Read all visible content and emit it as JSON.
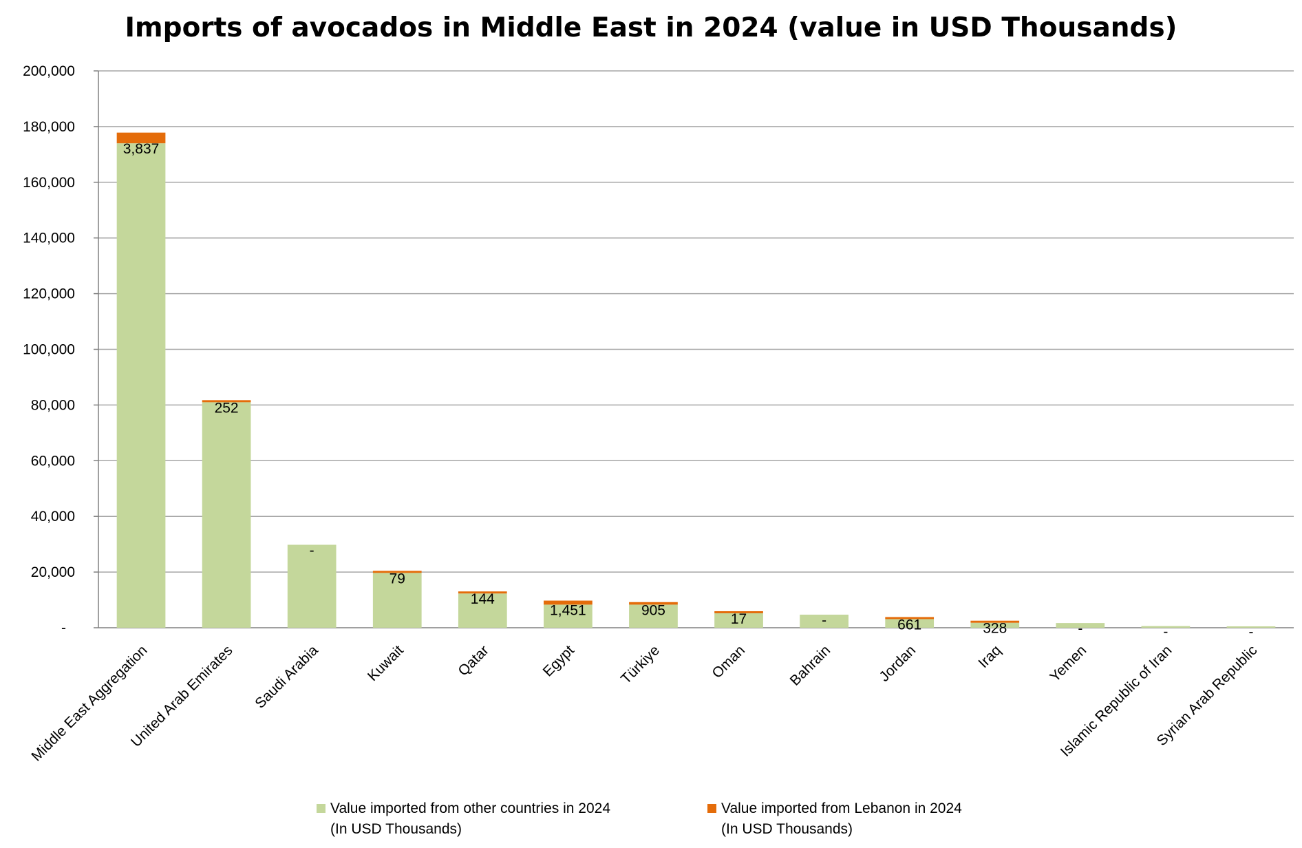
{
  "chart_data": {
    "type": "bar",
    "stacked": true,
    "title": "Imports of avocados in Middle East in 2024 (value in USD Thousands)",
    "xlabel": "",
    "ylabel": "",
    "ylim": [
      0,
      200000
    ],
    "yticks": [
      0,
      20000,
      40000,
      60000,
      80000,
      100000,
      120000,
      140000,
      160000,
      180000,
      200000
    ],
    "ytick_labels": [
      "-",
      "20,000",
      "40,000",
      "60,000",
      "80,000",
      "100,000",
      "120,000",
      "140,000",
      "160,000",
      "180,000",
      "200,000"
    ],
    "grid": true,
    "legend_position": "bottom",
    "categories": [
      "Middle East Aggregation",
      "United Arab Emirates",
      "Saudi Arabia",
      "Kuwait",
      "Qatar",
      "Egypt",
      "Türkiye",
      "Oman",
      "Bahrain",
      "Jordan",
      "Iraq",
      "Yemen",
      "Islamic Republic of Iran",
      "Syrian Arab Republic"
    ],
    "series": [
      {
        "name": "Value imported from other countries in 2024 (In USD Thousands)",
        "color": "#c4d79b",
        "values": [
          174000,
          81000,
          29800,
          19700,
          12300,
          8300,
          8300,
          5200,
          4700,
          3100,
          1800,
          1700,
          600,
          500
        ]
      },
      {
        "name": "Value imported from Lebanon in 2024 (In USD Thousands)",
        "color": "#e46c0a",
        "values": [
          3837,
          252,
          0,
          79,
          144,
          1451,
          905,
          17,
          0,
          661,
          328,
          0,
          0,
          0
        ],
        "labels": [
          "3,837",
          "252",
          "-",
          "79",
          "144",
          "1,451",
          "905",
          "17",
          "-",
          "661",
          "328",
          "-",
          "-",
          "-"
        ]
      }
    ]
  },
  "legend": {
    "items": [
      {
        "line1": "Value imported from other countries in 2024",
        "line2": "(In USD Thousands)",
        "color": "#c4d79b"
      },
      {
        "line1": "Value imported from Lebanon in 2024",
        "line2": "(In USD Thousands)",
        "color": "#e46c0a"
      }
    ]
  }
}
